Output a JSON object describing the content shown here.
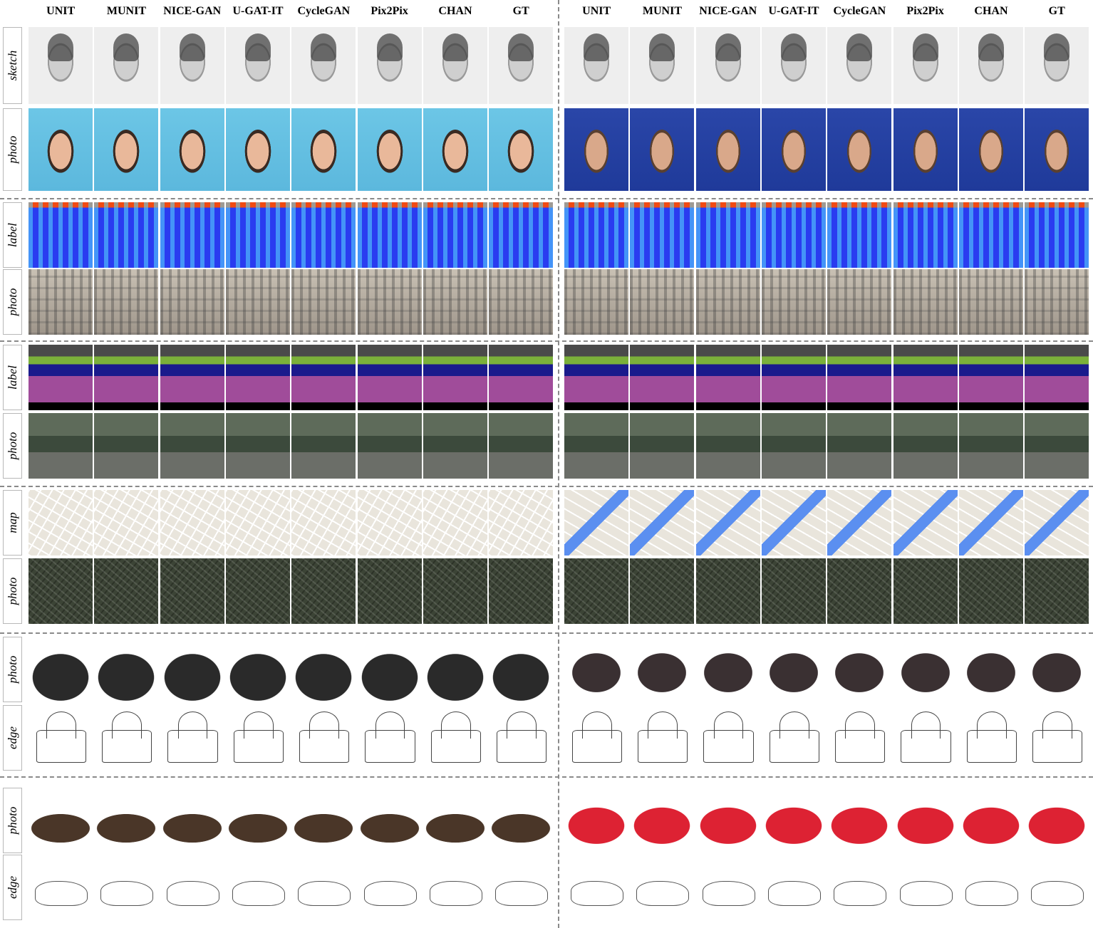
{
  "methods": [
    "UNIT",
    "MUNIT",
    "NICE-GAN",
    "U-GAT-IT",
    "CycleGAN",
    "Pix2Pix",
    "CHAN",
    "GT"
  ],
  "row_labels": [
    "sketch",
    "photo",
    "label",
    "photo",
    "label",
    "photo",
    "map",
    "photo",
    "photo",
    "edge",
    "photo",
    "edge"
  ]
}
